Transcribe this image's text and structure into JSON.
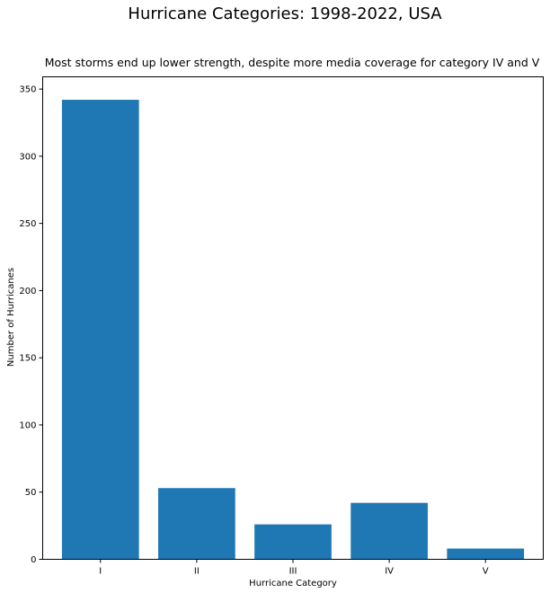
{
  "chart_data": {
    "type": "bar",
    "title": "Hurricane Categories: 1998-2022, USA",
    "subtitle": "Most storms end up lower strength, despite more media coverage for category IV and V",
    "xlabel": "Hurricane Category",
    "ylabel": "Number of Hurricanes",
    "categories": [
      "I",
      "II",
      "III",
      "IV",
      "V"
    ],
    "values": [
      342,
      53,
      26,
      42,
      8
    ],
    "ylim": [
      0,
      359.1
    ],
    "yticks": [
      0,
      50,
      100,
      150,
      200,
      250,
      300,
      350
    ],
    "grid": false,
    "bar_color": "#1f77b4"
  }
}
